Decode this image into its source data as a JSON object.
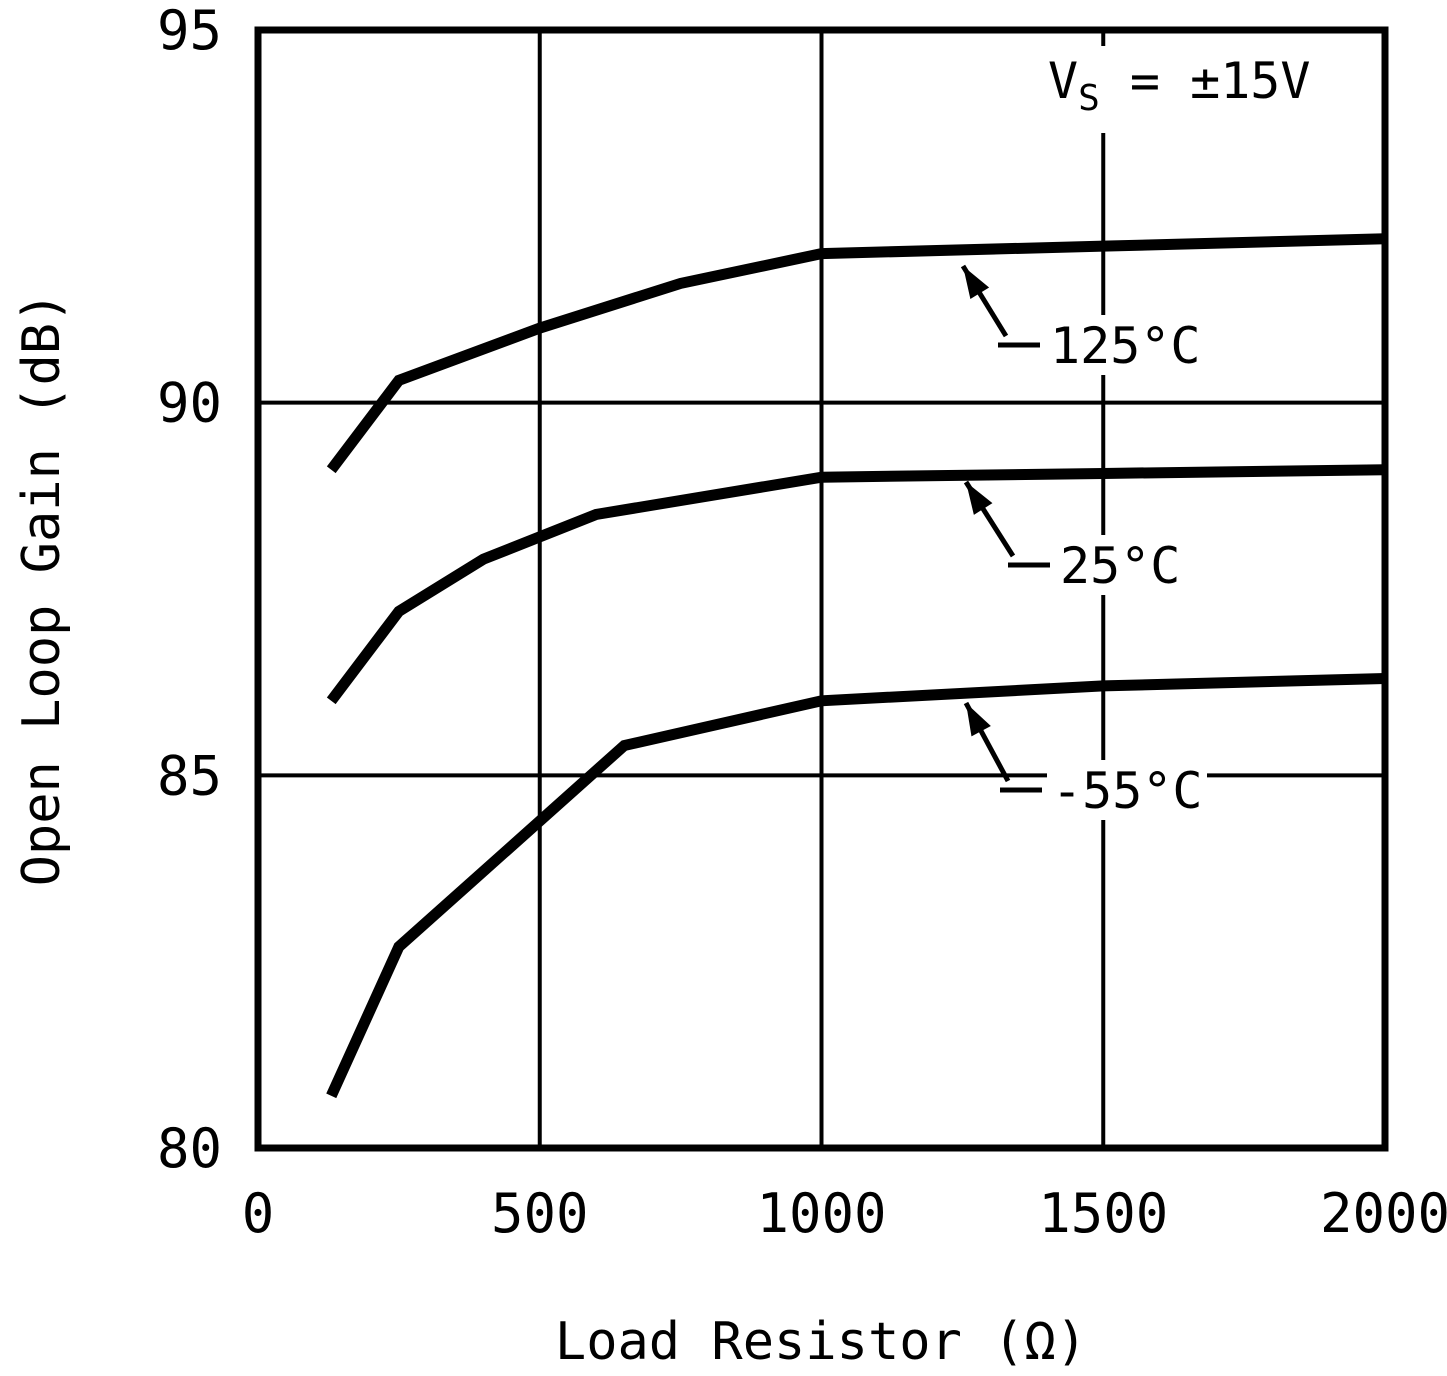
{
  "chart_data": {
    "type": "line",
    "title": "",
    "xlabel": "Load Resistor (Ω)",
    "ylabel": "Open Loop Gain (dB)",
    "xlim": [
      0,
      2000
    ],
    "ylim": [
      80,
      95
    ],
    "xticks": [
      0,
      500,
      1000,
      1500,
      2000
    ],
    "yticks": [
      80,
      85,
      90,
      95
    ],
    "grid": true,
    "legend_position": "inline-arrow-labels",
    "annotation": {
      "text": "VS = ±15V",
      "prefix": "V",
      "sub": "S",
      "suffix": " = ±15V"
    },
    "series": [
      {
        "name": "125°C",
        "x": [
          130,
          250,
          500,
          750,
          1000,
          1500,
          2000
        ],
        "y": [
          89.1,
          90.3,
          91.0,
          91.6,
          92.0,
          92.1,
          92.2
        ]
      },
      {
        "name": "25°C",
        "x": [
          130,
          250,
          400,
          600,
          1000,
          1500,
          2000
        ],
        "y": [
          86.0,
          87.2,
          87.9,
          88.5,
          89.0,
          89.05,
          89.1
        ]
      },
      {
        "name": "-55°C",
        "x": [
          130,
          250,
          650,
          1000,
          1500,
          2000
        ],
        "y": [
          80.7,
          82.7,
          85.4,
          86.0,
          86.2,
          86.3
        ]
      }
    ]
  }
}
